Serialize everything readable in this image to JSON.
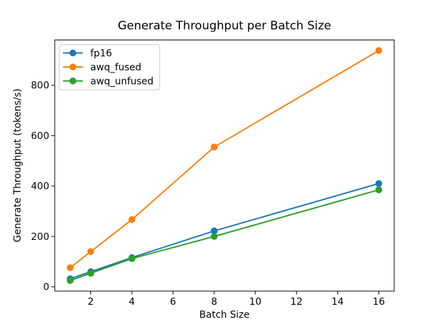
{
  "chart_data": {
    "type": "line",
    "title": "Generate Throughput per Batch Size",
    "xlabel": "Batch Size",
    "ylabel": "Generate Throughput (tokens/s)",
    "x": [
      1,
      2,
      4,
      8,
      16
    ],
    "series": [
      {
        "name": "fp16",
        "color": "#1f77b4",
        "values": [
          32,
          60,
          116,
          222,
          410
        ]
      },
      {
        "name": "awq_fused",
        "color": "#ff7f0e",
        "values": [
          76,
          140,
          267,
          555,
          938
        ]
      },
      {
        "name": "awq_unfused",
        "color": "#2ca02c",
        "values": [
          25,
          54,
          112,
          200,
          385
        ]
      }
    ],
    "xticks": [
      2,
      4,
      6,
      8,
      10,
      12,
      14,
      16
    ],
    "yticks": [
      0,
      200,
      400,
      600,
      800
    ],
    "xlim": [
      0.25,
      16.75
    ],
    "ylim": [
      -17,
      980
    ],
    "grid": false,
    "marker": "circle",
    "legend_position": "upper left",
    "colors": {
      "background": "#ffffff",
      "spine": "#000000",
      "text": "#000000",
      "legend_border": "#cccccc"
    }
  }
}
